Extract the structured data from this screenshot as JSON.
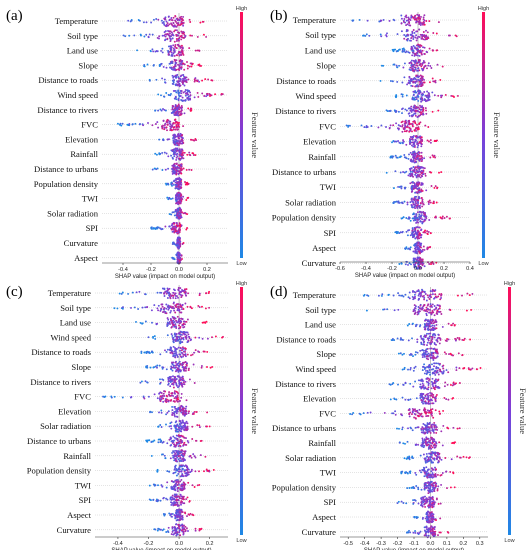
{
  "chart_data": [
    {
      "type": "scatter",
      "panel_label": "(a)",
      "xlabel": "SHAP value (impact on model output)",
      "xlim": [
        -0.55,
        0.35
      ],
      "xticks": [
        "-0.4",
        "-0.2",
        "0.0",
        "0.2"
      ],
      "features": [
        "Temperature",
        "Soil type",
        "Land use",
        "Slope",
        "Distance to roads",
        "Wind speed",
        "Distance to rivers",
        "FVC",
        "Elevation",
        "Rainfall",
        "Distance to urbans",
        "Population density",
        "TWI",
        "Solar radiation",
        "SPI",
        "Curvature",
        "Aspect"
      ],
      "shap_ranges": [
        [
          -0.42,
          0.18
        ],
        [
          -0.4,
          0.2
        ],
        [
          -0.3,
          0.16
        ],
        [
          -0.25,
          0.16
        ],
        [
          -0.22,
          0.24
        ],
        [
          -0.15,
          0.32
        ],
        [
          -0.18,
          0.1
        ],
        [
          -0.45,
          0.06
        ],
        [
          -0.17,
          0.13
        ],
        [
          -0.18,
          0.12
        ],
        [
          -0.19,
          0.1
        ],
        [
          -0.1,
          0.07
        ],
        [
          -0.09,
          0.07
        ],
        [
          -0.07,
          0.06
        ],
        [
          -0.2,
          0.06
        ],
        [
          -0.05,
          0.04
        ],
        [
          -0.05,
          0.04
        ]
      ],
      "colorbar": {
        "label": "Feature value",
        "high": "High",
        "low": "Low"
      }
    },
    {
      "type": "scatter",
      "panel_label": "(b)",
      "xlabel": "SHAP value (impact on model output)",
      "xlim": [
        -0.6,
        0.4
      ],
      "xticks": [
        "-0.6",
        "-0.4",
        "-0.2",
        "0.0",
        "0.2",
        "0.4"
      ],
      "features": [
        "Temperature",
        "Soil type",
        "Land use",
        "Slope",
        "Distance to roads",
        "Wind speed",
        "Distance to rivers",
        "FVC",
        "Elevation",
        "Rainfall",
        "Distance to urbans",
        "TWI",
        "Solar radiation",
        "Population density",
        "SPI",
        "Aspect",
        "Curvature"
      ],
      "shap_ranges": [
        [
          -0.52,
          0.25
        ],
        [
          -0.45,
          0.33
        ],
        [
          -0.2,
          0.15
        ],
        [
          -0.28,
          0.2
        ],
        [
          -0.3,
          0.2
        ],
        [
          -0.18,
          0.35
        ],
        [
          -0.28,
          0.18
        ],
        [
          -0.55,
          0.1
        ],
        [
          -0.25,
          0.15
        ],
        [
          -0.22,
          0.15
        ],
        [
          -0.25,
          0.18
        ],
        [
          -0.2,
          0.15
        ],
        [
          -0.2,
          0.15
        ],
        [
          -0.15,
          0.25
        ],
        [
          -0.18,
          0.12
        ],
        [
          -0.1,
          0.1
        ],
        [
          -0.15,
          0.15
        ]
      ],
      "colorbar": {
        "label": "Feature value",
        "high": "High",
        "low": "Low"
      }
    },
    {
      "type": "scatter",
      "panel_label": "(c)",
      "xlabel": "SHAP value (impact on model output)",
      "xlim": [
        -0.55,
        0.32
      ],
      "xticks": [
        "-0.4",
        "-0.2",
        "0.0",
        "0.2"
      ],
      "features": [
        "Temperature",
        "Soil type",
        "Land use",
        "Wind speed",
        "Distance to roads",
        "Slope",
        "Distance to rivers",
        "FVC",
        "Elevation",
        "Solar radiation",
        "Distance to urbans",
        "Rainfall",
        "Population density",
        "TWI",
        "SPI",
        "Aspect",
        "Curvature"
      ],
      "shap_ranges": [
        [
          -0.4,
          0.22
        ],
        [
          -0.45,
          0.2
        ],
        [
          -0.3,
          0.18
        ],
        [
          -0.22,
          0.3
        ],
        [
          -0.25,
          0.2
        ],
        [
          -0.22,
          0.22
        ],
        [
          -0.28,
          0.18
        ],
        [
          -0.5,
          0.12
        ],
        [
          -0.2,
          0.2
        ],
        [
          -0.15,
          0.22
        ],
        [
          -0.22,
          0.15
        ],
        [
          -0.18,
          0.18
        ],
        [
          -0.15,
          0.25
        ],
        [
          -0.2,
          0.15
        ],
        [
          -0.22,
          0.12
        ],
        [
          -0.1,
          0.1
        ],
        [
          -0.18,
          0.15
        ]
      ],
      "colorbar": {
        "label": "Feature value",
        "high": "High",
        "low": "Low"
      }
    },
    {
      "type": "scatter",
      "panel_label": "(d)",
      "xlabel": "SHAP value (impact on model output)",
      "xlim": [
        -0.55,
        0.35
      ],
      "xticks": [
        "-0.5",
        "-0.4",
        "-0.3",
        "-0.2",
        "-0.1",
        "0.0",
        "0.1",
        "0.2",
        "0.3"
      ],
      "features": [
        "Temperature",
        "Soil type",
        "Land use",
        "Distance to roads",
        "Slope",
        "Wind speed",
        "Distance to rivers",
        "Elevation",
        "FVC",
        "Distance to urbans",
        "Rainfall",
        "Solar radiation",
        "TWI",
        "Population density",
        "SPI",
        "Aspect",
        "Curvature"
      ],
      "shap_ranges": [
        [
          -0.42,
          0.3
        ],
        [
          -0.4,
          0.25
        ],
        [
          -0.15,
          0.15
        ],
        [
          -0.25,
          0.25
        ],
        [
          -0.2,
          0.2
        ],
        [
          -0.2,
          0.32
        ],
        [
          -0.25,
          0.2
        ],
        [
          -0.25,
          0.15
        ],
        [
          -0.5,
          0.1
        ],
        [
          -0.22,
          0.18
        ],
        [
          -0.2,
          0.15
        ],
        [
          -0.18,
          0.25
        ],
        [
          -0.18,
          0.15
        ],
        [
          -0.15,
          0.15
        ],
        [
          -0.22,
          0.12
        ],
        [
          -0.1,
          0.08
        ],
        [
          -0.15,
          0.12
        ]
      ],
      "colorbar": {
        "label": "Feature value",
        "high": "High",
        "low": "Low"
      }
    }
  ]
}
